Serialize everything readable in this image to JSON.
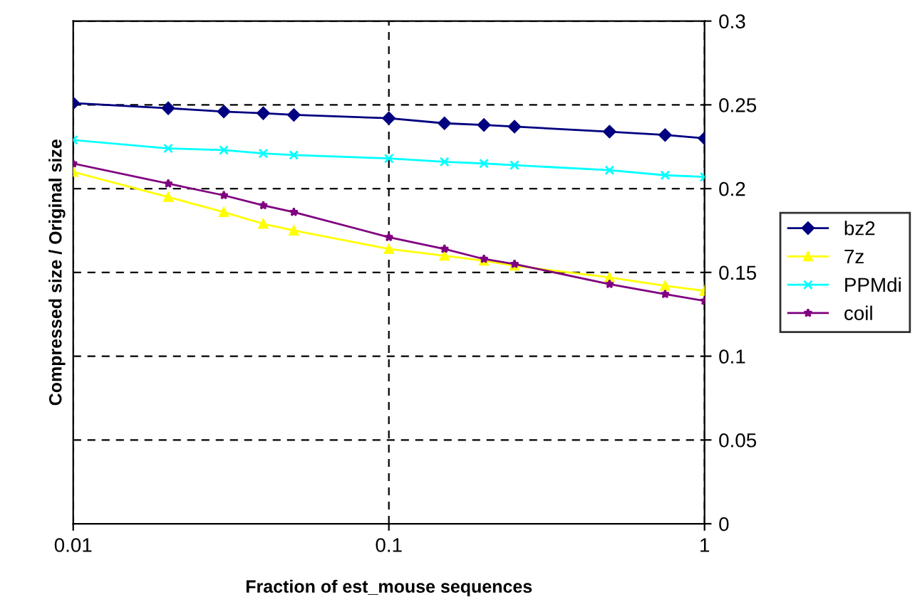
{
  "chart_data": {
    "type": "line",
    "xlabel": "Fraction of est_mouse sequences",
    "ylabel": "Compressed size / Original size",
    "x": [
      0.01,
      0.02,
      0.03,
      0.04,
      0.05,
      0.1,
      0.15,
      0.2,
      0.25,
      0.5,
      0.75,
      1
    ],
    "log": "x",
    "xlim": [
      0.01,
      1
    ],
    "xticks": [
      0.01,
      0.1,
      1
    ],
    "ylim": [
      0,
      0.3
    ],
    "yticks": [
      0,
      0.05,
      0.1,
      0.15,
      0.2,
      0.25,
      0.3
    ],
    "grid": true,
    "legend": "right",
    "line_style": "solid",
    "series": [
      {
        "name": "bz2",
        "color": "#000080",
        "marker": "diamond",
        "values": [
          0.251,
          0.248,
          0.246,
          0.245,
          0.244,
          0.242,
          0.239,
          0.238,
          0.237,
          0.234,
          0.232,
          0.23
        ]
      },
      {
        "name": "7z",
        "color": "#ffff00",
        "marker": "triangle",
        "values": [
          0.21,
          0.195,
          0.186,
          0.179,
          0.175,
          0.164,
          0.16,
          0.157,
          0.154,
          0.147,
          0.142,
          0.139
        ]
      },
      {
        "name": "PPMdi",
        "color": "#00ffff",
        "marker": "cross",
        "values": [
          0.229,
          0.224,
          0.223,
          0.221,
          0.22,
          0.218,
          0.216,
          0.215,
          0.214,
          0.211,
          0.208,
          0.207
        ]
      },
      {
        "name": "coil",
        "color": "#800080",
        "marker": "star",
        "values": [
          0.215,
          0.203,
          0.196,
          0.19,
          0.186,
          0.171,
          0.164,
          0.158,
          0.155,
          0.143,
          0.137,
          0.133
        ]
      }
    ]
  }
}
